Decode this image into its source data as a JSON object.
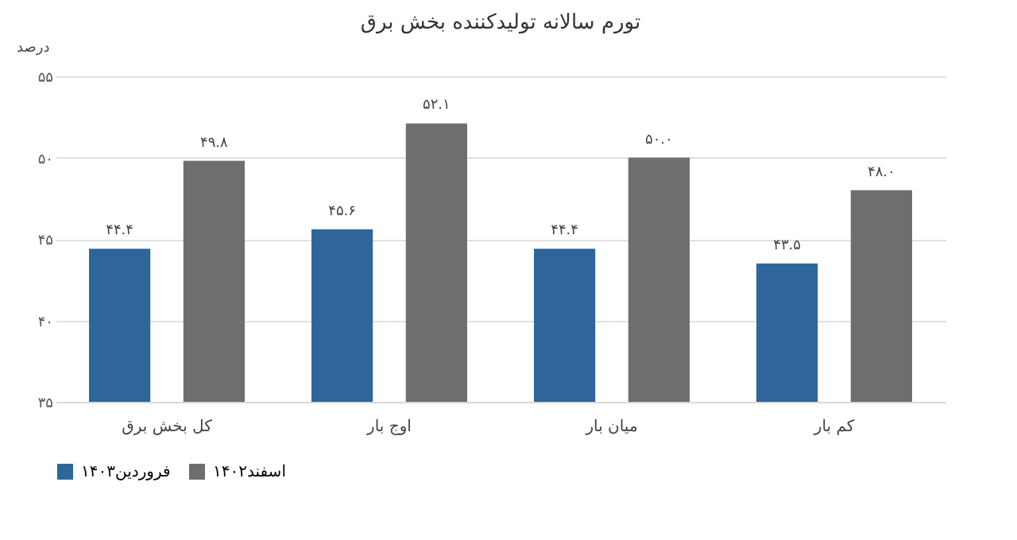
{
  "chart_data": {
    "type": "bar",
    "title": "تورم سالانه تولیدکننده بخش برق",
    "ylabel": "درصد",
    "categories": [
      "کل بخش برق",
      "اوج بار",
      "میان بار",
      "کم بار"
    ],
    "series": [
      {
        "name": "فروردین۱۴۰۳",
        "color": "#2e6699",
        "values": [
          44.4,
          45.6,
          44.4,
          43.5
        ],
        "value_labels": [
          "۴۴.۴",
          "۴۵.۶",
          "۴۴.۴",
          "۴۳.۵"
        ]
      },
      {
        "name": "اسفند۱۴۰۲",
        "color": "#6e6e6e",
        "values": [
          49.8,
          52.1,
          50.0,
          48.0
        ],
        "value_labels": [
          "۴۹.۸",
          "۵۲.۱",
          "۵۰.۰",
          "۴۸.۰"
        ]
      }
    ],
    "ylim": [
      35,
      55
    ],
    "yticks": [
      {
        "value": 35,
        "label": "۳۵"
      },
      {
        "value": 40,
        "label": "۴۰"
      },
      {
        "value": 45,
        "label": "۴۵"
      },
      {
        "value": 50,
        "label": "۵۰"
      },
      {
        "value": 55,
        "label": "۵۵"
      }
    ],
    "grid": "y",
    "legend": "bottom"
  }
}
